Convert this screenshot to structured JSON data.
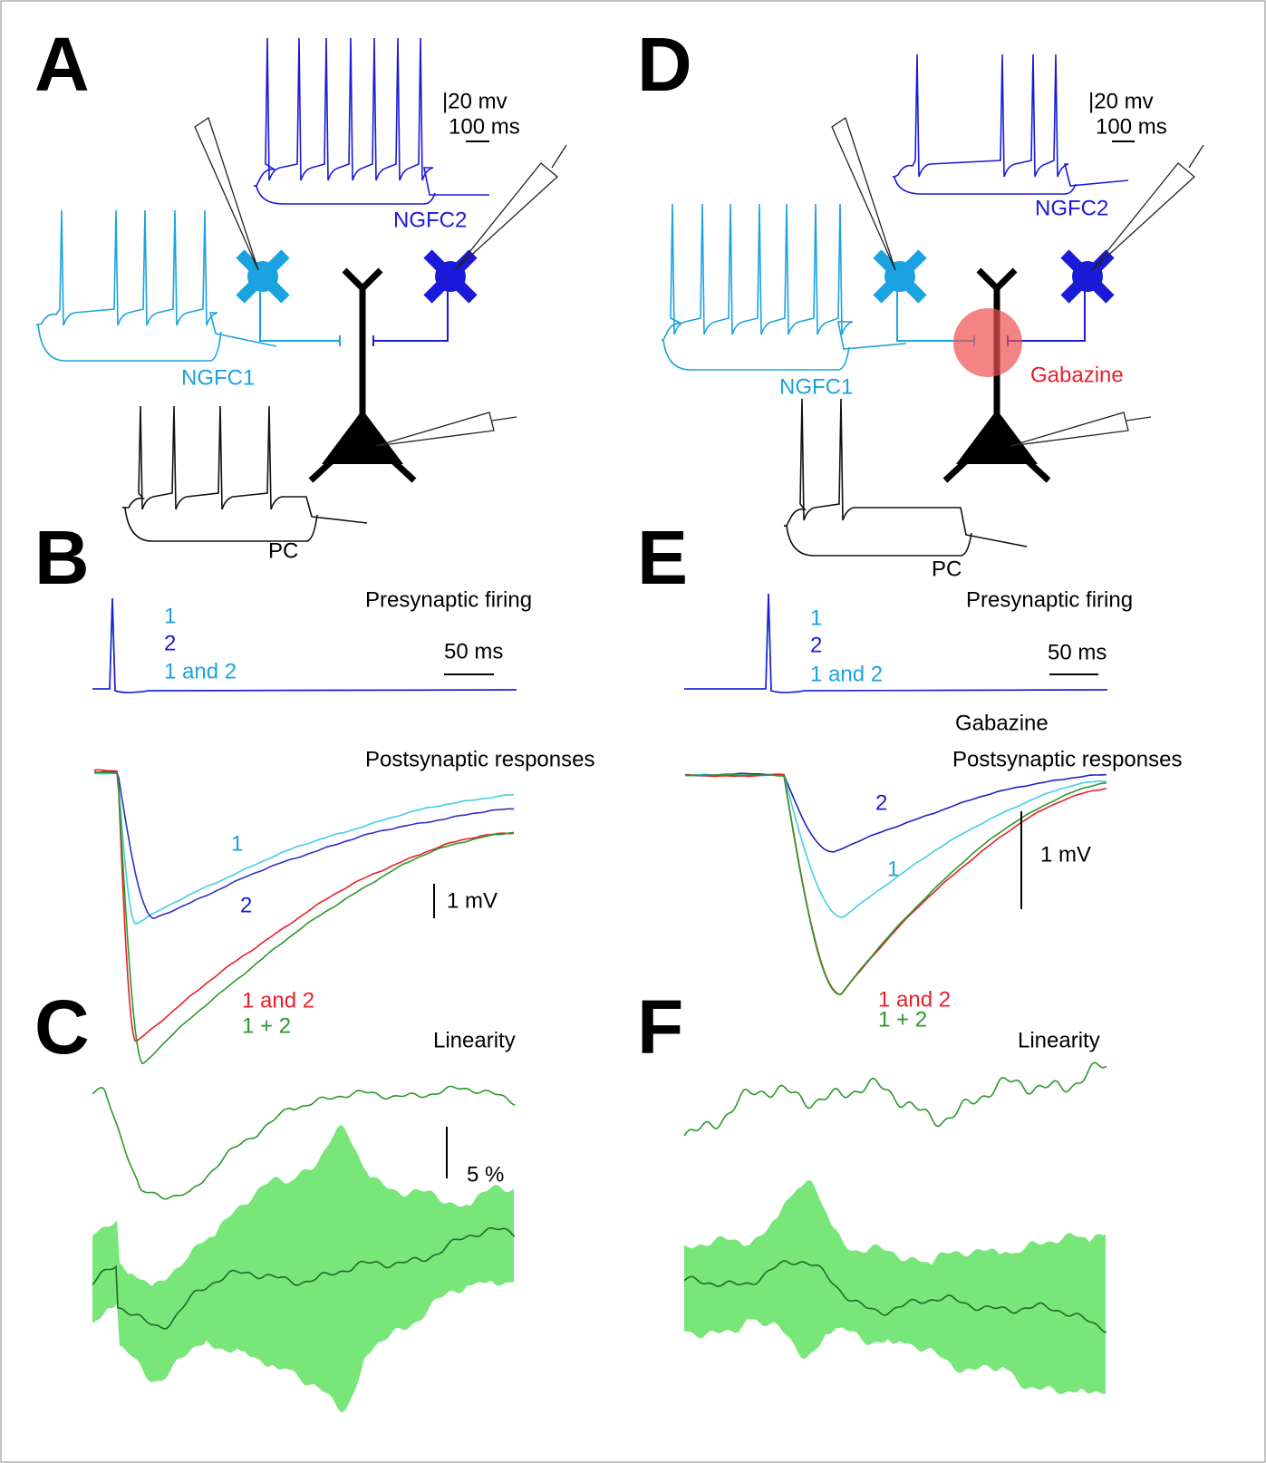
{
  "panel_a": {
    "label": "A",
    "voltage_scale": "|20 mv",
    "time_scale": "100 ms",
    "cell_1": "NGFC1",
    "cell_2": "NGFC2",
    "cell_pc": "PC"
  },
  "panel_b": {
    "label": "B",
    "presynaptic_title": "Presynaptic firing",
    "trace_labels": [
      "1",
      "2",
      "1 and 2"
    ],
    "time_scale": "50 ms",
    "postsynaptic_title": "Postsynaptic responses",
    "response_labels": [
      "1",
      "2",
      "1 and 2",
      "1 + 2"
    ],
    "voltage_scale": "1 mV"
  },
  "panel_c": {
    "label": "C",
    "title": "Linearity",
    "scale": "5 %"
  },
  "panel_d": {
    "label": "D",
    "voltage_scale": "|20 mv",
    "time_scale": "100 ms",
    "cell_1": "NGFC1",
    "cell_2": "NGFC2",
    "cell_pc": "PC",
    "drug": "Gabazine"
  },
  "panel_e": {
    "label": "E",
    "presynaptic_title": "Presynaptic firing",
    "trace_labels": [
      "1",
      "2",
      "1 and 2"
    ],
    "time_scale": "50 ms",
    "condition": "Gabazine",
    "postsynaptic_title": "Postsynaptic responses",
    "response_labels": [
      "2",
      "1",
      "1 and 2",
      "1 + 2"
    ],
    "voltage_scale": "1 mV"
  },
  "panel_f": {
    "label": "F",
    "title": "Linearity"
  }
}
